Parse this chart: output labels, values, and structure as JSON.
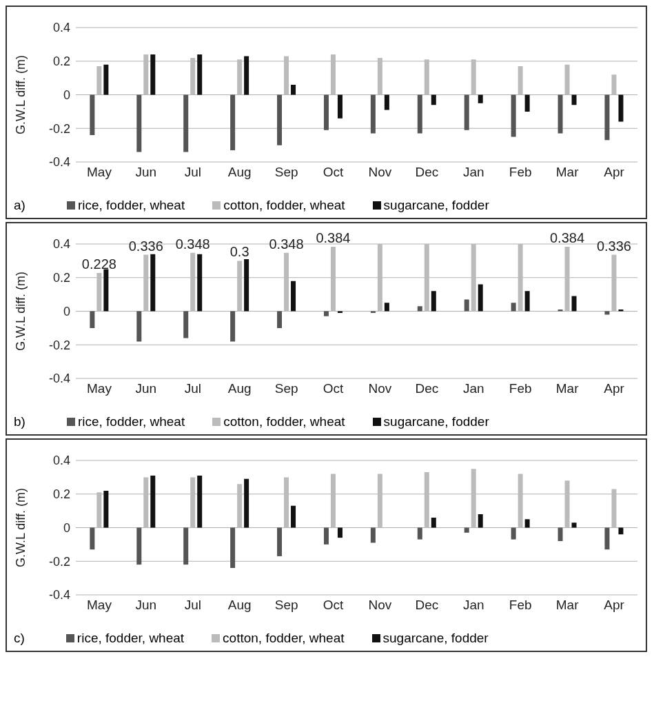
{
  "chart_data": [
    {
      "type": "bar",
      "ylabel": "G.W.L diff. (m)",
      "categories": [
        "May",
        "Jun",
        "Jul",
        "Aug",
        "Sep",
        "Oct",
        "Nov",
        "Dec",
        "Jan",
        "Feb",
        "Mar",
        "Apr"
      ],
      "ylim": [
        -0.4,
        0.4
      ],
      "yticks": [
        -0.4,
        -0.2,
        0,
        0.2,
        0.4
      ],
      "grid": "y",
      "legend": "bottom",
      "annotations": [
        "a)"
      ],
      "series": [
        {
          "name": "rice, fodder, wheat",
          "color": "#555555",
          "values": [
            -0.24,
            -0.34,
            -0.34,
            -0.33,
            -0.3,
            -0.21,
            -0.23,
            -0.23,
            -0.21,
            -0.25,
            -0.23,
            -0.27
          ]
        },
        {
          "name": "cotton, fodder, wheat",
          "color": "#bbbbbb",
          "values": [
            0.17,
            0.24,
            0.22,
            0.21,
            0.23,
            0.24,
            0.22,
            0.21,
            0.21,
            0.17,
            0.18,
            0.12
          ]
        },
        {
          "name": "sugarcane, fodder",
          "color": "#111111",
          "values": [
            0.18,
            0.24,
            0.24,
            0.23,
            0.06,
            -0.14,
            -0.09,
            -0.06,
            -0.05,
            -0.1,
            -0.06,
            -0.16
          ]
        }
      ]
    },
    {
      "type": "bar",
      "ylabel": "G.W.L diff. (m)",
      "categories": [
        "May",
        "Jun",
        "Jul",
        "Aug",
        "Sep",
        "Oct",
        "Nov",
        "Dec",
        "Jan",
        "Feb",
        "Mar",
        "Apr"
      ],
      "ylim": [
        -0.4,
        0.4
      ],
      "yticks": [
        -0.4,
        -0.2,
        0,
        0.2,
        0.4
      ],
      "grid": "y",
      "legend": "bottom",
      "annotations": [
        "b)"
      ],
      "series": [
        {
          "name": "rice, fodder, wheat",
          "color": "#555555",
          "values": [
            -0.1,
            -0.18,
            -0.16,
            -0.18,
            -0.1,
            -0.03,
            -0.01,
            0.03,
            0.07,
            0.05,
            0.01,
            -0.02
          ]
        },
        {
          "name": "cotton, fodder, wheat",
          "color": "#bbbbbb",
          "values": [
            0.228,
            0.336,
            0.348,
            0.3,
            0.348,
            0.384,
            0.4,
            0.4,
            0.4,
            0.4,
            0.384,
            0.336
          ],
          "value_labels": [
            "0.228",
            "0.336",
            "0.348",
            "0.3",
            "0.348",
            "0.384",
            null,
            null,
            null,
            null,
            "0.384",
            "0.336"
          ]
        },
        {
          "name": "sugarcane, fodder",
          "color": "#111111",
          "values": [
            0.25,
            0.34,
            0.34,
            0.31,
            0.18,
            -0.01,
            0.05,
            0.12,
            0.16,
            0.12,
            0.09,
            0.01
          ]
        }
      ]
    },
    {
      "type": "bar",
      "ylabel": "G.W.L diff. (m)",
      "categories": [
        "May",
        "Jun",
        "Jul",
        "Aug",
        "Sep",
        "Oct",
        "Nov",
        "Dec",
        "Jan",
        "Feb",
        "Mar",
        "Apr"
      ],
      "ylim": [
        -0.4,
        0.4
      ],
      "yticks": [
        -0.4,
        -0.2,
        0,
        0.2,
        0.4
      ],
      "grid": "y",
      "legend": "bottom",
      "annotations": [
        "c)"
      ],
      "series": [
        {
          "name": "rice, fodder, wheat",
          "color": "#555555",
          "values": [
            -0.13,
            -0.22,
            -0.22,
            -0.24,
            -0.17,
            -0.1,
            -0.09,
            -0.07,
            -0.03,
            -0.07,
            -0.08,
            -0.13
          ]
        },
        {
          "name": "cotton, fodder, wheat",
          "color": "#bbbbbb",
          "values": [
            0.21,
            0.3,
            0.3,
            0.26,
            0.3,
            0.32,
            0.32,
            0.33,
            0.35,
            0.32,
            0.28,
            0.23
          ]
        },
        {
          "name": "sugarcane, fodder",
          "color": "#111111",
          "values": [
            0.22,
            0.31,
            0.31,
            0.29,
            0.13,
            -0.06,
            0,
            0.06,
            0.08,
            0.05,
            0.03,
            -0.04
          ]
        }
      ]
    }
  ]
}
